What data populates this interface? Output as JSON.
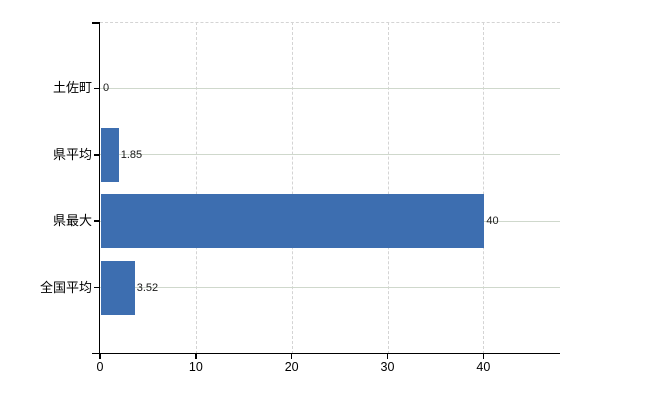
{
  "chart_data": {
    "type": "bar",
    "orientation": "horizontal",
    "title": "",
    "categories": [
      "土佐町",
      "県平均",
      "県最大",
      "全国平均"
    ],
    "values": [
      0,
      1.85,
      40,
      3.52
    ],
    "value_labels": [
      "0",
      "1.85",
      "40",
      "3.52"
    ],
    "x_ticks": [
      0,
      10,
      20,
      30,
      40
    ],
    "x_tick_labels": [
      "0",
      "10",
      "20",
      "30",
      "40"
    ],
    "xlim": [
      0,
      48
    ],
    "grid": true,
    "legend": false,
    "bar_color": "#3D6EB0",
    "axis_color": "#000000",
    "h_gridline_color": "#CFD8CC",
    "v_gridline_color": "#D4D4D4",
    "text_color": "#000000",
    "value_label_color": "#1A1A1A",
    "background_color": "#FFFFFF"
  }
}
